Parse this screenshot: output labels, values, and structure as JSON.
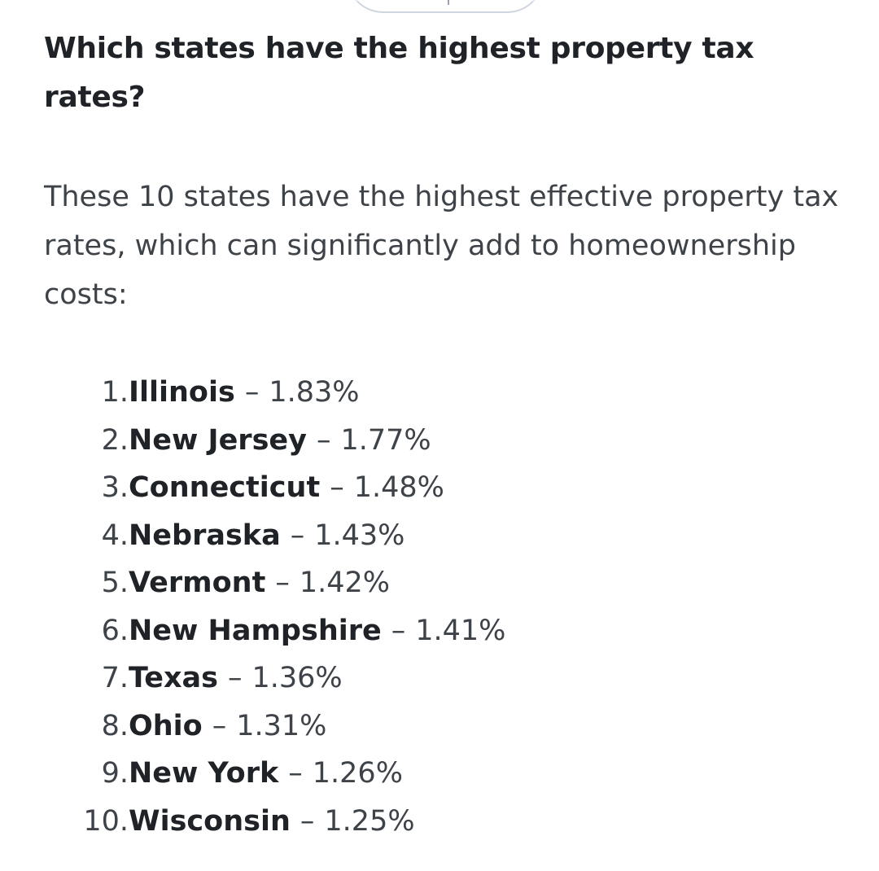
{
  "heading": "Which states have the highest property tax rates?",
  "intro": "These 10 states have the highest effective property tax rates, which can significantly add to homeownership costs:",
  "separator": "–",
  "items": [
    {
      "rank": "1.",
      "state": "Illinois",
      "rate": "1.83%"
    },
    {
      "rank": "2.",
      "state": "New Jersey",
      "rate": "1.77%"
    },
    {
      "rank": "3.",
      "state": "Connecticut",
      "rate": "1.48%"
    },
    {
      "rank": "4.",
      "state": "Nebraska",
      "rate": "1.43%"
    },
    {
      "rank": "5.",
      "state": "Vermont",
      "rate": "1.42%"
    },
    {
      "rank": "6.",
      "state": "New Hampshire",
      "rate": "1.41%"
    },
    {
      "rank": "7.",
      "state": "Texas",
      "rate": "1.36%"
    },
    {
      "rank": "8.",
      "state": "Ohio",
      "rate": "1.31%"
    },
    {
      "rank": "9.",
      "state": "New York",
      "rate": "1.26%"
    },
    {
      "rank": "10.",
      "state": "Wisconsin",
      "rate": "1.25%"
    }
  ]
}
